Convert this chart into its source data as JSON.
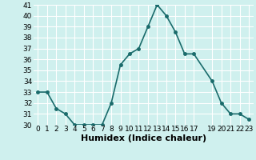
{
  "x": [
    0,
    1,
    2,
    3,
    4,
    5,
    6,
    7,
    8,
    9,
    10,
    11,
    12,
    13,
    14,
    15,
    16,
    17,
    19,
    20,
    21,
    22,
    23
  ],
  "y": [
    33,
    33,
    31.5,
    31,
    30,
    30,
    30,
    30,
    32,
    35.5,
    36.5,
    37,
    39,
    41,
    40,
    38.5,
    36.5,
    36.5,
    34,
    32,
    31,
    31,
    30.5
  ],
  "line_color": "#1a6b6b",
  "marker_color": "#1a6b6b",
  "bg_color": "#cff0ee",
  "grid_color": "#ffffff",
  "xlabel": "Humidex (Indice chaleur)",
  "ylim": [
    30,
    41
  ],
  "xlim": [
    -0.5,
    23.5
  ],
  "yticks": [
    30,
    31,
    32,
    33,
    34,
    35,
    36,
    37,
    38,
    39,
    40,
    41
  ],
  "xticks": [
    0,
    1,
    2,
    3,
    4,
    5,
    6,
    7,
    8,
    9,
    10,
    11,
    12,
    13,
    14,
    15,
    16,
    17,
    19,
    20,
    21,
    22,
    23
  ],
  "xtick_labels": [
    "0",
    "1",
    "2",
    "3",
    "4",
    "5",
    "6",
    "7",
    "8",
    "9",
    "10",
    "11",
    "12",
    "13",
    "14",
    "15",
    "16",
    "17",
    "19",
    "20",
    "21",
    "22",
    "23"
  ],
  "xlabel_fontsize": 8,
  "tick_fontsize": 6.5,
  "line_width": 1.2,
  "marker_size": 2.5
}
